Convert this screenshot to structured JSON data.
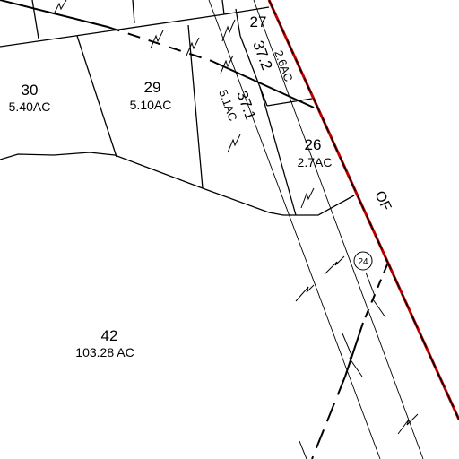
{
  "map": {
    "parcels": [
      {
        "id": "30",
        "acreage": "5.40AC"
      },
      {
        "id": "29",
        "acreage": "5.10AC"
      },
      {
        "id": "27",
        "acreage": ""
      },
      {
        "id": "37.2",
        "acreage": "2.6AC"
      },
      {
        "id": "37.1",
        "acreage": "5.1AC"
      },
      {
        "id": "26",
        "acreage": "2.7AC"
      },
      {
        "id": "42",
        "acreage": "103.28 AC"
      }
    ],
    "road_label": "OF",
    "route_marker": "24",
    "colors": {
      "background": "#ffffff",
      "lines": "#000000",
      "boundary_red": "#c00000"
    }
  }
}
